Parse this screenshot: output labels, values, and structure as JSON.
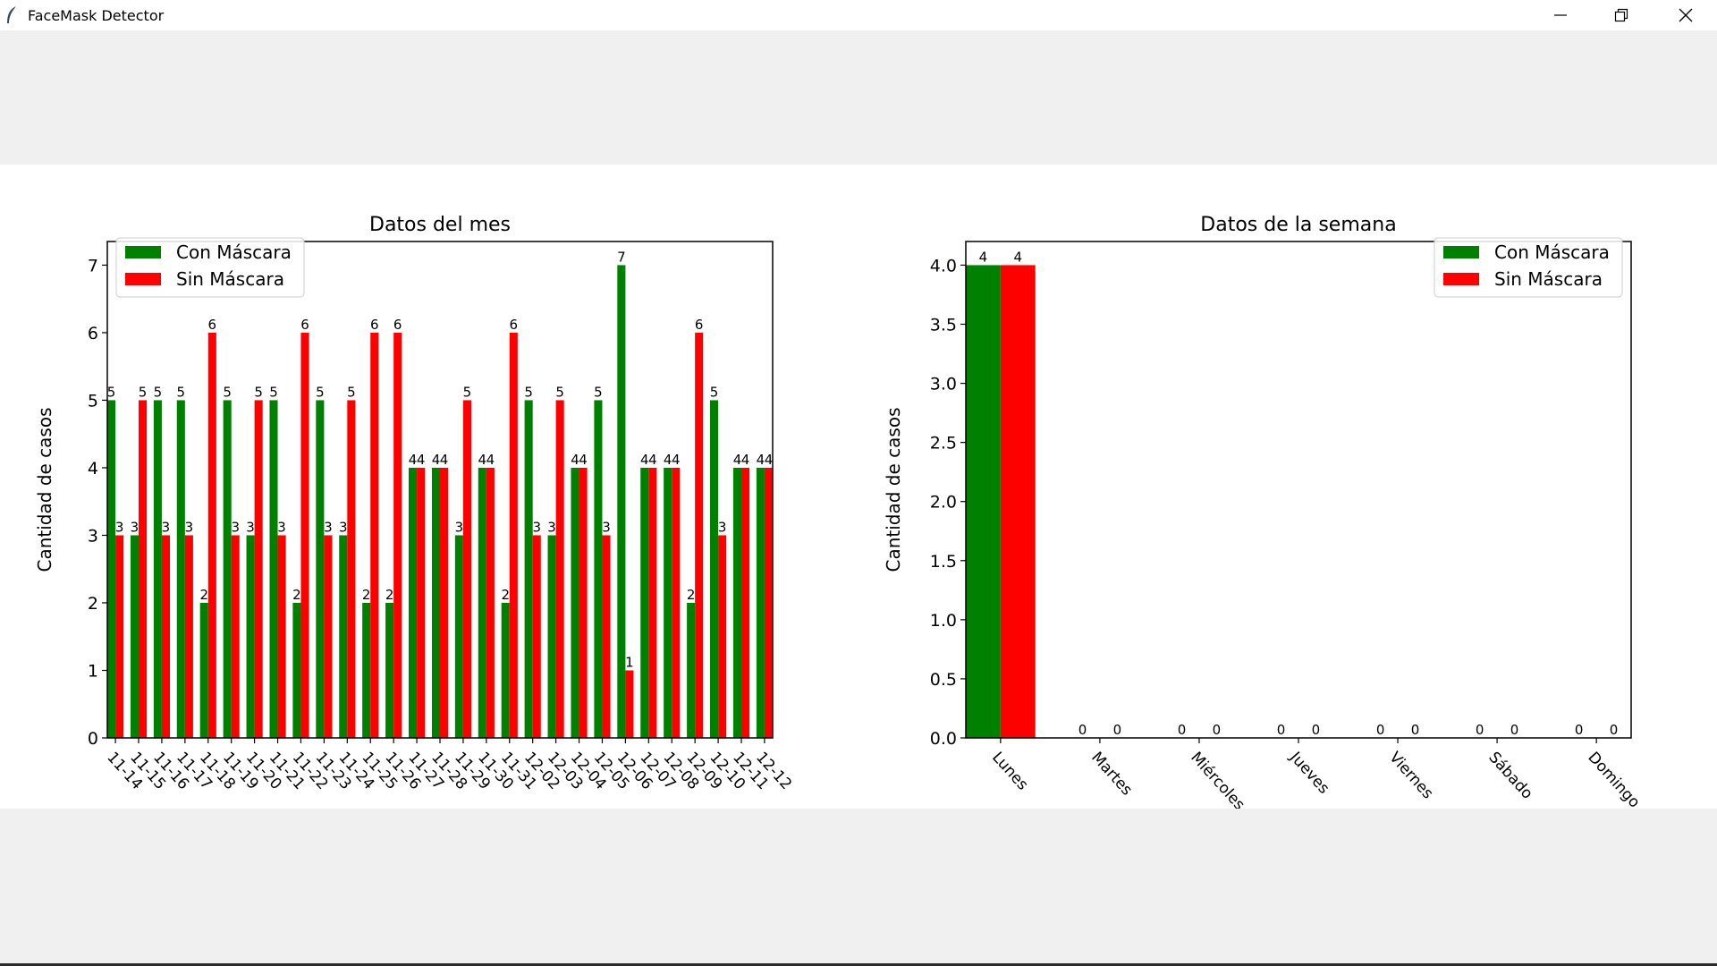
{
  "window": {
    "title": "FaceMask Detector",
    "controls": [
      "minimize",
      "restore",
      "close"
    ]
  },
  "colors": {
    "con": "#008000",
    "sin": "#ff0000"
  },
  "chart_data": [
    {
      "type": "bar",
      "title": "Datos del mes",
      "ylabel": "Cantidad de casos",
      "xlabel": "",
      "ylim": [
        0,
        7.35
      ],
      "yticks": [
        "0",
        "1",
        "2",
        "3",
        "4",
        "5",
        "6",
        "7"
      ],
      "legend": "top-left",
      "categories": [
        "11-14",
        "11-15",
        "11-16",
        "11-17",
        "11-18",
        "11-19",
        "11-20",
        "11-21",
        "11-22",
        "11-23",
        "11-24",
        "11-25",
        "11-26",
        "11-27",
        "11-28",
        "11-29",
        "11-30",
        "11-31",
        "12-02",
        "12-03",
        "12-04",
        "12-05",
        "12-06",
        "12-07",
        "12-08",
        "12-09",
        "12-10",
        "12-11",
        "12-12"
      ],
      "series": [
        {
          "name": "Con Máscara",
          "color": "#008000",
          "values": [
            5,
            3,
            5,
            5,
            2,
            5,
            3,
            5,
            2,
            5,
            3,
            2,
            2,
            4,
            4,
            3,
            4,
            2,
            5,
            3,
            4,
            5,
            7,
            4,
            4,
            2,
            5,
            4,
            4
          ]
        },
        {
          "name": "Sin Máscara",
          "color": "#ff0000",
          "values": [
            3,
            5,
            3,
            3,
            6,
            3,
            5,
            3,
            6,
            3,
            5,
            6,
            6,
            4,
            4,
            5,
            4,
            6,
            3,
            5,
            4,
            3,
            1,
            4,
            4,
            6,
            3,
            4,
            4
          ]
        }
      ]
    },
    {
      "type": "bar",
      "title": "Datos de la semana",
      "ylabel": "Cantidad de casos",
      "xlabel": "",
      "ylim": [
        0,
        4.2
      ],
      "yticks": [
        "0.0",
        "0.5",
        "1.0",
        "1.5",
        "2.0",
        "2.5",
        "3.0",
        "3.5",
        "4.0"
      ],
      "legend": "top-right",
      "categories": [
        "Lunes",
        "Martes",
        "Miércoles",
        "Jueves",
        "Viernes",
        "Sábado",
        "Domingo"
      ],
      "series": [
        {
          "name": "Con Máscara",
          "color": "#008000",
          "values": [
            4,
            0,
            0,
            0,
            0,
            0,
            0
          ]
        },
        {
          "name": "Sin Máscara",
          "color": "#ff0000",
          "values": [
            4,
            0,
            0,
            0,
            0,
            0,
            0
          ]
        }
      ]
    }
  ]
}
